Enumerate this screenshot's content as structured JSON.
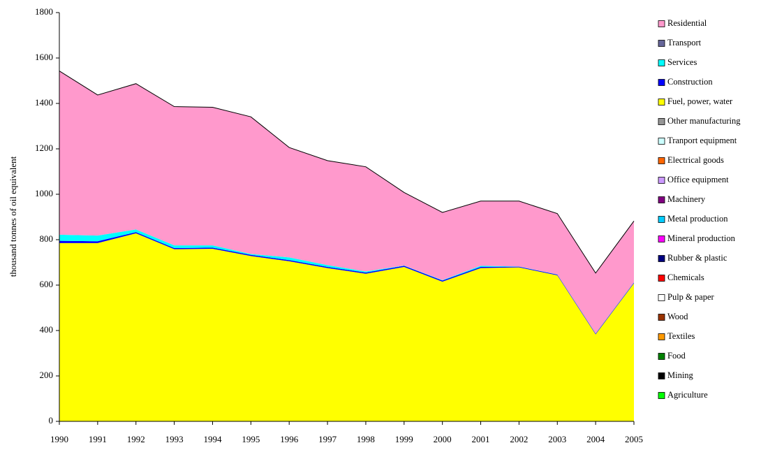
{
  "chart_data": {
    "type": "stacked_area",
    "y_label": "thousand tonnes of oil equivalent",
    "categories": [
      "1990",
      "1991",
      "1992",
      "1993",
      "1994",
      "1995",
      "1996",
      "1997",
      "1998",
      "1999",
      "2000",
      "2001",
      "2002",
      "2003",
      "2004",
      "2005"
    ],
    "ylim": [
      0,
      1800
    ],
    "yticks": [
      0,
      200,
      400,
      600,
      800,
      1000,
      1200,
      1400,
      1600,
      1800
    ],
    "series": [
      {
        "name": "Agriculture",
        "color": "#00ff00",
        "values": [
          0,
          0,
          0,
          0,
          0,
          0,
          0,
          0,
          0,
          0,
          0,
          0,
          0,
          0,
          0,
          0
        ]
      },
      {
        "name": "Mining",
        "color": "#000000",
        "values": [
          0,
          0,
          0,
          0,
          0,
          0,
          0,
          0,
          0,
          0,
          0,
          0,
          0,
          0,
          0,
          0
        ]
      },
      {
        "name": "Food",
        "color": "#008000",
        "values": [
          0,
          0,
          0,
          0,
          0,
          0,
          0,
          0,
          0,
          0,
          0,
          0,
          0,
          0,
          0,
          0
        ]
      },
      {
        "name": "Textiles",
        "color": "#ff9900",
        "values": [
          0,
          0,
          0,
          0,
          0,
          0,
          0,
          0,
          0,
          0,
          0,
          0,
          0,
          0,
          0,
          0
        ]
      },
      {
        "name": "Wood",
        "color": "#993300",
        "values": [
          0,
          0,
          0,
          0,
          0,
          0,
          0,
          0,
          0,
          0,
          0,
          0,
          0,
          0,
          0,
          0
        ]
      },
      {
        "name": "Pulp & paper",
        "color": "#ffffff",
        "values": [
          0,
          0,
          0,
          0,
          0,
          0,
          0,
          0,
          0,
          0,
          0,
          0,
          0,
          0,
          0,
          0
        ]
      },
      {
        "name": "Chemicals",
        "color": "#ff0000",
        "values": [
          0,
          0,
          0,
          0,
          0,
          0,
          0,
          0,
          0,
          0,
          0,
          0,
          0,
          0,
          0,
          0
        ]
      },
      {
        "name": "Rubber & plastic",
        "color": "#000080",
        "values": [
          0,
          0,
          0,
          0,
          0,
          0,
          0,
          0,
          0,
          0,
          0,
          0,
          0,
          0,
          0,
          0
        ]
      },
      {
        "name": "Mineral production",
        "color": "#ff00ff",
        "values": [
          0,
          0,
          0,
          0,
          0,
          0,
          0,
          0,
          0,
          0,
          0,
          0,
          0,
          0,
          0,
          0
        ]
      },
      {
        "name": "Metal production",
        "color": "#00ccff",
        "values": [
          0,
          0,
          0,
          0,
          0,
          0,
          0,
          0,
          0,
          0,
          0,
          0,
          0,
          0,
          0,
          0
        ]
      },
      {
        "name": "Machinery",
        "color": "#800080",
        "values": [
          0,
          0,
          0,
          0,
          0,
          0,
          0,
          0,
          0,
          0,
          0,
          0,
          0,
          0,
          0,
          0
        ]
      },
      {
        "name": "Office equipment",
        "color": "#cc99ff",
        "values": [
          0,
          0,
          0,
          0,
          0,
          0,
          0,
          0,
          0,
          0,
          0,
          0,
          0,
          0,
          0,
          0
        ]
      },
      {
        "name": "Electrical goods",
        "color": "#ff6600",
        "values": [
          0,
          0,
          0,
          0,
          0,
          0,
          0,
          0,
          0,
          0,
          0,
          0,
          0,
          0,
          0,
          0
        ]
      },
      {
        "name": "Tranport equipment",
        "color": "#ccffff",
        "values": [
          0,
          0,
          0,
          0,
          0,
          0,
          0,
          0,
          0,
          0,
          0,
          0,
          0,
          0,
          0,
          0
        ]
      },
      {
        "name": "Other manufacturing",
        "color": "#969696",
        "values": [
          0,
          0,
          0,
          0,
          0,
          0,
          0,
          0,
          0,
          0,
          0,
          0,
          0,
          0,
          0,
          0
        ]
      },
      {
        "name": "Fuel, power, water",
        "color": "#ffff00",
        "values": [
          785,
          785,
          828,
          758,
          760,
          728,
          705,
          675,
          650,
          680,
          615,
          675,
          678,
          643,
          383,
          608
        ]
      },
      {
        "name": "Construction",
        "color": "#0000ff",
        "values": [
          10,
          8,
          5,
          5,
          5,
          5,
          5,
          5,
          5,
          5,
          5,
          5,
          3,
          3,
          3,
          3
        ]
      },
      {
        "name": "Services",
        "color": "#00ffff",
        "values": [
          27,
          25,
          12,
          12,
          10,
          4,
          12,
          8,
          5,
          1,
          2,
          5,
          1,
          1,
          1,
          1
        ]
      },
      {
        "name": "Transport",
        "color": "#666699",
        "values": [
          0,
          0,
          0,
          0,
          0,
          0,
          0,
          0,
          0,
          0,
          0,
          0,
          0,
          0,
          0,
          0
        ]
      },
      {
        "name": "Residential",
        "color": "#ff99cc",
        "values": [
          721,
          619,
          642,
          611,
          608,
          604,
          484,
          460,
          461,
          322,
          298,
          285,
          288,
          268,
          266,
          270
        ]
      }
    ]
  }
}
